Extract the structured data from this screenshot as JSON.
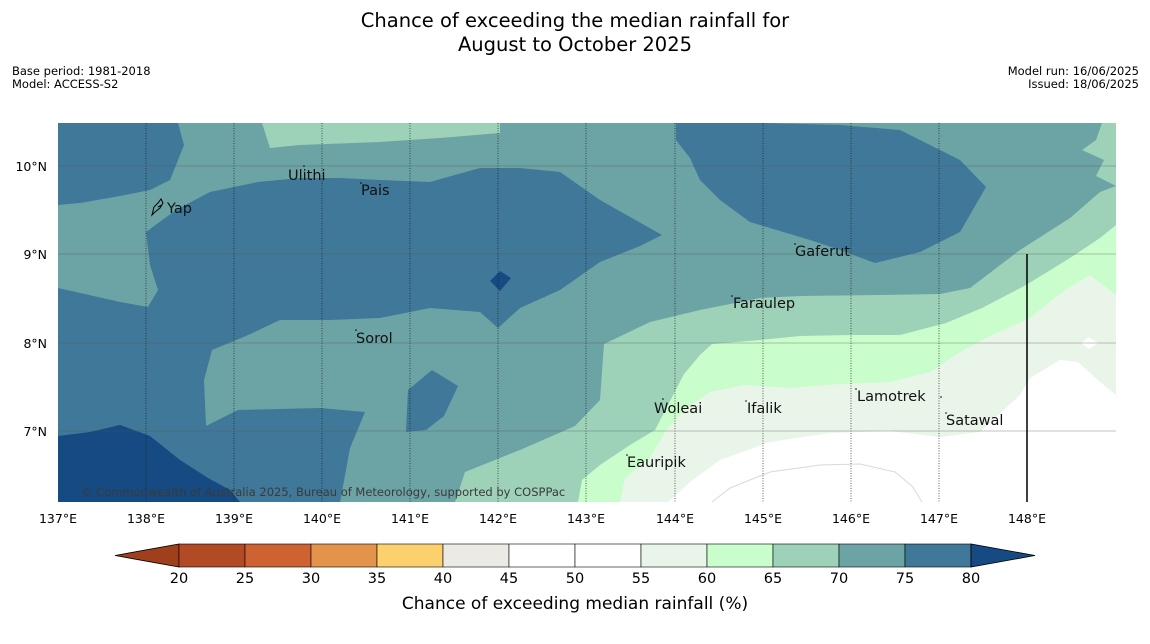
{
  "title": {
    "line1": "Chance of exceeding the median rainfall for",
    "line2": "August to October 2025"
  },
  "meta_left": {
    "base_period": "Base period: 1981-2018",
    "model": "Model: ACCESS-S2"
  },
  "meta_right": {
    "model_run": "Model run: 16/06/2025",
    "issued": "Issued: 18/06/2025"
  },
  "copyright": "© Commonwealth of Australia 2025, Bureau of Meteorology, supported by COSPPac",
  "axes": {
    "x_ticks": [
      "137°E",
      "138°E",
      "139°E",
      "140°E",
      "141°E",
      "142°E",
      "143°E",
      "144°E",
      "145°E",
      "146°E",
      "147°E",
      "148°E"
    ],
    "y_ticks": [
      "10°N",
      "9°N",
      "8°N",
      "7°N"
    ]
  },
  "places": [
    {
      "name": "Ulithi"
    },
    {
      "name": "Pais"
    },
    {
      "name": "Yap"
    },
    {
      "name": "Gaferut"
    },
    {
      "name": "Faraulep"
    },
    {
      "name": "Sorol"
    },
    {
      "name": "Lamotrek"
    },
    {
      "name": "Woleai"
    },
    {
      "name": "Ifalik"
    },
    {
      "name": "Satawal"
    },
    {
      "name": "Eauripik"
    }
  ],
  "colorbar": {
    "label": "Chance of exceeding median rainfall (%)",
    "ticks": [
      "20",
      "25",
      "30",
      "35",
      "40",
      "45",
      "50",
      "55",
      "60",
      "65",
      "70",
      "75",
      "80"
    ],
    "colors": [
      "#b34a26",
      "#cf6233",
      "#e3934a",
      "#fdd06e",
      "#ebeae5",
      "#ffffff",
      "#ffffff",
      "#e9f5e9",
      "#c9fdcb",
      "#9dd1b8",
      "#6ca3a5",
      "#3f7898"
    ],
    "low_extend_color": "#9f3f1c",
    "high_extend_color": "#154a82"
  },
  "colors": {
    "c80plus": "#154a82",
    "c75_80": "#3f7898",
    "c70_75": "#6ca3a5",
    "c65_70": "#9dd1b8",
    "c60_65": "#c9fdcb",
    "c55_60": "#e9f5e9",
    "c45_55": "#ffffff"
  }
}
